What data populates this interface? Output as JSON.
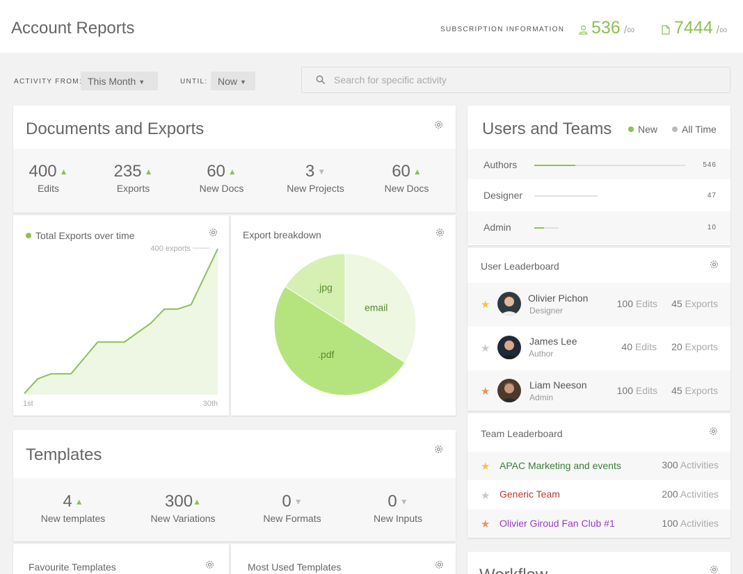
{
  "header": {
    "title": "Account Reports",
    "subscription_label": "SUBSCRIPTION  INFORMATION",
    "stats": [
      {
        "icon": "user-icon",
        "value": "536",
        "limit": "/∞"
      },
      {
        "icon": "document-icon",
        "value": "7444",
        "limit": "/∞"
      }
    ]
  },
  "filters": {
    "activity_from_label": "ACTIVITY FROM:",
    "activity_from_value": "This Month",
    "until_label": "UNTIL:",
    "until_value": "Now",
    "search_placeholder": "Search for specific activity"
  },
  "documents": {
    "title": "Documents and Exports",
    "kpis": [
      {
        "value": "400",
        "trend": "up",
        "label": "Edits"
      },
      {
        "value": "235",
        "trend": "up",
        "label": "Exports"
      },
      {
        "value": "60",
        "trend": "up",
        "label": "New Docs"
      },
      {
        "value": "3",
        "trend": "down",
        "label": "New Projects"
      },
      {
        "value": "60",
        "trend": "up",
        "label": "New Docs"
      }
    ]
  },
  "exports_chart": {
    "title": "Total Exports over time",
    "annotation": "400 exports",
    "x_start": "1st",
    "x_end": "30th"
  },
  "breakdown": {
    "title": "Export breakdown"
  },
  "chart_data": [
    {
      "type": "area",
      "title": "Total Exports over time",
      "x": [
        1,
        3,
        5,
        8,
        12,
        16,
        20,
        22,
        24,
        26,
        30
      ],
      "y": [
        2,
        25,
        33,
        33,
        83,
        83,
        113,
        135,
        135,
        142,
        230
      ],
      "x_tick_labels": [
        "1st",
        "30th"
      ],
      "annotation": "400 exports",
      "color": "#8cc152",
      "fill": "#eef6e4"
    },
    {
      "type": "pie",
      "title": "Export breakdown",
      "labels": [
        "email",
        ".pdf",
        ".jpg"
      ],
      "values": [
        34,
        50,
        16
      ],
      "colors": [
        "#eef7e2",
        "#b5e47f",
        "#d6f0b3"
      ]
    }
  ],
  "templates": {
    "title": "Templates",
    "kpis": [
      {
        "value": "4",
        "trend": "up",
        "label": "New templates"
      },
      {
        "value": "300",
        "trend": "up",
        "label": "New Variations"
      },
      {
        "value": "0",
        "trend": "down",
        "label": "New Formats"
      },
      {
        "value": "0",
        "trend": "down",
        "label": "New Inputs"
      }
    ],
    "favourite_title": "Favourite Templates",
    "most_used_title": "Most Used Templates"
  },
  "users": {
    "title": "Users and Teams",
    "legend_new": "New",
    "legend_all": "All Time",
    "colors": {
      "accent": "#8cc152",
      "muted": "#bbbbbb"
    },
    "rows": [
      {
        "name": "Authors",
        "count": "546",
        "new_fraction": 0.27,
        "total_fraction": 1.0
      },
      {
        "name": "Designer",
        "count": "47",
        "new_fraction": 0.0,
        "total_fraction": 0.42
      },
      {
        "name": "Admin",
        "count": "10",
        "new_fraction": 0.4,
        "total_fraction": 0.16
      }
    ]
  },
  "user_leaderboard": {
    "title": "User Leaderboard",
    "rows": [
      {
        "name": "Olivier Pichon",
        "role": "Designer",
        "edits": "100",
        "edits_unit": "Edits",
        "exports": "45",
        "exports_unit": "Exports",
        "star": "#f6c342"
      },
      {
        "name": "James Lee",
        "role": "Author",
        "edits": "40",
        "edits_unit": "Edits",
        "exports": "20",
        "exports_unit": "Exports",
        "star": "#c8c8c8"
      },
      {
        "name": "Liam Neeson",
        "role": "Admin",
        "edits": "100",
        "edits_unit": "Edits",
        "exports": "45",
        "exports_unit": "Exports",
        "star": "#e8935b"
      }
    ]
  },
  "team_leaderboard": {
    "title": "Team Leaderboard",
    "rows": [
      {
        "name": "APAC Marketing and events",
        "count": "300",
        "unit": "Activities",
        "color": "#3a7f3a",
        "star": "#f6c342"
      },
      {
        "name": "Generic Team",
        "count": "200",
        "unit": "Activities",
        "color": "#c0392b",
        "star": "#c8c8c8"
      },
      {
        "name": "Olivier Giroud Fan Club #1",
        "count": "100",
        "unit": "Activities",
        "color": "#9b3bc0",
        "star": "#e8935b"
      }
    ]
  },
  "workflow": {
    "title": "Workflow"
  }
}
